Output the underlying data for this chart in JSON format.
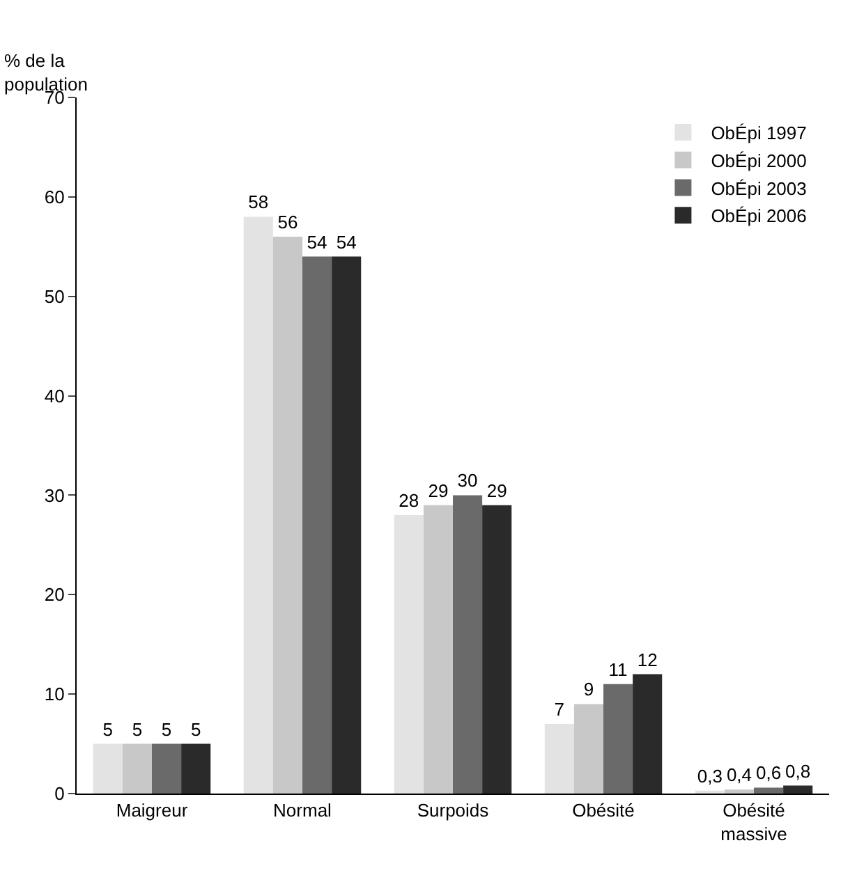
{
  "chart_data": {
    "type": "bar",
    "ylabel": "% de la population",
    "categories": [
      "Maigreur",
      "Normal",
      "Surpoids",
      "Obésité",
      "Obésité massive"
    ],
    "series": [
      {
        "name": "ObÉpi 1997",
        "color": "#e3e3e3",
        "values": [
          5,
          58,
          28,
          7,
          0.3
        ],
        "value_labels": [
          "5",
          "58",
          "28",
          "7",
          "0,3"
        ]
      },
      {
        "name": "ObÉpi 2000",
        "color": "#c8c8c8",
        "values": [
          5,
          56,
          29,
          9,
          0.4
        ],
        "value_labels": [
          "5",
          "56",
          "29",
          "9",
          "0,4"
        ]
      },
      {
        "name": "ObÉpi 2003",
        "color": "#6a6a6a",
        "values": [
          5,
          54,
          30,
          11,
          0.6
        ],
        "value_labels": [
          "5",
          "54",
          "30",
          "11",
          "0,6"
        ]
      },
      {
        "name": "ObÉpi 2006",
        "color": "#2a2a2a",
        "values": [
          5,
          54,
          29,
          12,
          0.8
        ],
        "value_labels": [
          "5",
          "54",
          "29",
          "12",
          "0,8"
        ]
      }
    ],
    "ylim": [
      0,
      70
    ],
    "yticks": [
      0,
      10,
      20,
      30,
      40,
      50,
      60,
      70
    ],
    "legend": "top right"
  }
}
